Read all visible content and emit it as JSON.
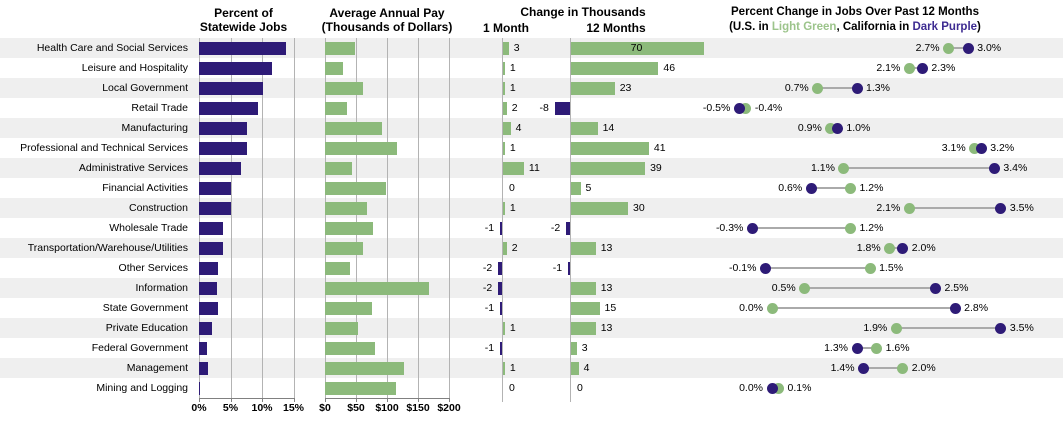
{
  "headers": {
    "jobs_line1": "Percent of",
    "jobs_line2": "Statewide Jobs",
    "pay_line1": "Average Annual Pay",
    "pay_line2": "(Thousands of Dollars)",
    "change_title": "Change in Thousands",
    "change_col1": "1 Month",
    "change_col2": "12 Months",
    "pct_title": "Percent Change in Jobs Over Past 12 Months",
    "sub_prefix": "(U.S. in ",
    "sub_green": "Light Green",
    "sub_mid": ", California in ",
    "sub_purple": "Dark Purple",
    "sub_suffix": ")"
  },
  "colors": {
    "green": "#8cba7b",
    "purple": "#2e1b77",
    "green_text": "#9cc48b",
    "purple_text": "#3d2b91",
    "stripe": "#efefef",
    "grid": "#b3b3b3",
    "axis": "#808080",
    "connector": "#aaaaaa"
  },
  "chart_data": [
    {
      "type": "bar",
      "title": "Percent of Statewide Jobs",
      "categories": [
        "Health Care and Social Services",
        "Leisure and Hospitality",
        "Local Government",
        "Retail Trade",
        "Manufacturing",
        "Professional and Technical Services",
        "Administrative Services",
        "Financial Activities",
        "Construction",
        "Wholesale Trade",
        "Transportation/Warehouse/Utilities",
        "Other Services",
        "Information",
        "State Government",
        "Private Education",
        "Federal Government",
        "Management",
        "Mining and Logging"
      ],
      "values": [
        13.8,
        11.6,
        10.2,
        9.4,
        7.6,
        7.6,
        6.7,
        5.0,
        5.1,
        3.8,
        3.8,
        3.0,
        2.9,
        3.0,
        2.1,
        1.3,
        1.4,
        0.1
      ],
      "xlim": [
        0,
        15
      ],
      "tick_labels": [
        "0%",
        "5%",
        "10%",
        "15%"
      ],
      "tick_values": [
        0,
        5,
        10,
        15
      ]
    },
    {
      "type": "bar",
      "title": "Average Annual Pay (Thousands of Dollars)",
      "values": [
        48,
        29,
        61,
        35,
        92,
        116,
        44,
        98,
        68,
        77,
        61,
        40,
        168,
        76,
        53,
        81,
        127,
        115
      ],
      "xlim": [
        0,
        200
      ],
      "tick_labels": [
        "$0",
        "$50",
        "$100",
        "$150",
        "$200"
      ],
      "tick_values": [
        0,
        50,
        100,
        150,
        200
      ]
    },
    {
      "type": "bar",
      "title": "Change in Thousands - 1 Month",
      "values": [
        3,
        1,
        1,
        2,
        4,
        1,
        11,
        0,
        1,
        -1,
        2,
        -2,
        -2,
        -1,
        1,
        -1,
        1,
        0
      ],
      "zero_axis_label": "0"
    },
    {
      "type": "bar",
      "title": "Change in Thousands - 12 Months",
      "values": [
        70,
        46,
        23,
        -8,
        14,
        41,
        39,
        5,
        30,
        -2,
        13,
        -1,
        13,
        15,
        13,
        3,
        4,
        0
      ],
      "zero_axis_label": "0"
    },
    {
      "type": "dumbbell",
      "title": "Percent Change in Jobs Over Past 12 Months",
      "series": [
        {
          "name": "U.S.",
          "values": [
            2.7,
            2.1,
            0.7,
            -0.4,
            0.9,
            3.1,
            1.1,
            1.2,
            2.1,
            1.2,
            1.8,
            1.5,
            0.5,
            0.0,
            1.9,
            1.6,
            2.0,
            0.1
          ]
        },
        {
          "name": "California",
          "values": [
            3.0,
            2.3,
            1.3,
            -0.5,
            1.0,
            3.2,
            3.4,
            0.6,
            3.5,
            -0.3,
            2.0,
            -0.1,
            2.5,
            2.8,
            3.5,
            1.3,
            1.4,
            0.0
          ]
        }
      ]
    }
  ]
}
